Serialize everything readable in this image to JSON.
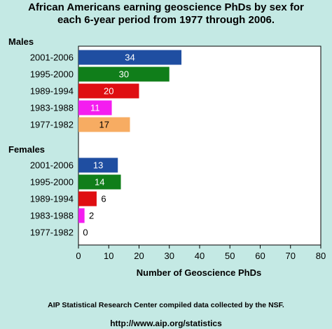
{
  "chart_data": {
    "type": "bar",
    "orientation": "horizontal",
    "title_lines": [
      "African Americans earning geoscience PhDs by sex for",
      "each 6-year period from 1977 through 2006."
    ],
    "groups": [
      {
        "name": "Males",
        "categories": [
          "2001-2006",
          "1995-2000",
          "1989-1994",
          "1983-1988",
          "1977-1982"
        ],
        "values": [
          34,
          30,
          20,
          11,
          17
        ],
        "colors": [
          "#1f4ea1",
          "#107e1a",
          "#df0e12",
          "#f41df0",
          "#f7ac62"
        ]
      },
      {
        "name": "Females",
        "categories": [
          "2001-2006",
          "1995-2000",
          "1989-1994",
          "1983-1988",
          "1977-1982"
        ],
        "values": [
          13,
          14,
          6,
          2,
          0
        ],
        "colors": [
          "#1f4ea1",
          "#107e1a",
          "#df0e12",
          "#f41df0",
          "#f7ac62"
        ]
      }
    ],
    "xlabel": "Number of Geoscience PhDs",
    "xlim": [
      0,
      80
    ],
    "xticks": [
      0,
      10,
      20,
      30,
      40,
      50,
      60,
      70,
      80
    ],
    "grid": false,
    "legend": "none"
  },
  "footer": {
    "source": "AIP Statistical Research Center compiled data collected by the NSF.",
    "url": "http://www.aip.org/statistics"
  }
}
